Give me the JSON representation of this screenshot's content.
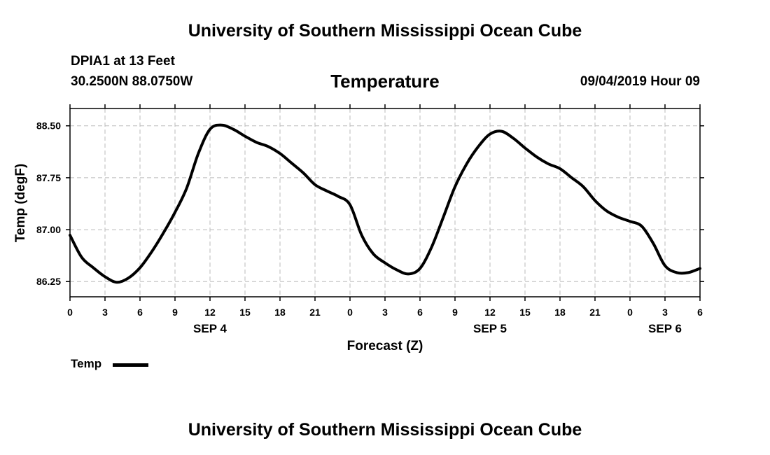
{
  "header": {
    "title": "University of Southern Mississippi Ocean Cube",
    "station": "DPIA1 at 13 Feet",
    "coords": "30.2500N 88.0750W",
    "chart_title": "Temperature",
    "datetime": "09/04/2019 Hour 09"
  },
  "footer": {
    "title": "University of Southern Mississippi Ocean Cube"
  },
  "legend": {
    "label": "Temp"
  },
  "colors": {
    "line": "#000000",
    "grid": "#bbbbbb",
    "background": "#ffffff"
  },
  "chart_data": {
    "type": "line",
    "title": "Temperature",
    "xlabel": "Forecast (Z)",
    "ylabel": "Temp (degF)",
    "x_ticks": [
      "0",
      "3",
      "6",
      "9",
      "12",
      "15",
      "18",
      "21",
      "0",
      "3",
      "6",
      "9",
      "12",
      "15",
      "18",
      "21",
      "0",
      "3",
      "6"
    ],
    "date_labels": [
      {
        "label": "SEP 4",
        "hour": 12
      },
      {
        "label": "SEP 5",
        "hour": 36
      },
      {
        "label": "SEP 6",
        "hour": 51
      }
    ],
    "xlim": [
      0,
      54
    ],
    "ylim": [
      86.03,
      88.75
    ],
    "y_ticks": [
      86.25,
      87.0,
      87.75,
      88.5
    ],
    "y_tick_labels": [
      "86.25",
      "87.00",
      "87.75",
      "88.50"
    ],
    "grid": true,
    "legend_position": "bottom-left",
    "series": [
      {
        "name": "Temp",
        "x": [
          0,
          1,
          2,
          3,
          4,
          5,
          6,
          7,
          8,
          9,
          10,
          11,
          12,
          13,
          14,
          15,
          16,
          17,
          18,
          19,
          20,
          21,
          22,
          23,
          24,
          25,
          26,
          27,
          28,
          29,
          30,
          31,
          32,
          33,
          34,
          35,
          36,
          37,
          38,
          39,
          40,
          41,
          42,
          43,
          44,
          45,
          46,
          47,
          48,
          49,
          50,
          51,
          52,
          53,
          54
        ],
        "y": [
          86.92,
          86.6,
          86.45,
          86.32,
          86.24,
          86.3,
          86.45,
          86.68,
          86.95,
          87.25,
          87.6,
          88.1,
          88.45,
          88.51,
          88.45,
          88.35,
          88.26,
          88.2,
          88.1,
          87.96,
          87.82,
          87.65,
          87.56,
          87.48,
          87.36,
          86.92,
          86.65,
          86.52,
          86.42,
          86.36,
          86.44,
          86.75,
          87.18,
          87.62,
          87.95,
          88.2,
          88.38,
          88.42,
          88.32,
          88.18,
          88.05,
          87.95,
          87.88,
          87.75,
          87.62,
          87.42,
          87.27,
          87.18,
          87.12,
          87.05,
          86.8,
          86.48,
          86.38,
          86.38,
          86.44
        ]
      }
    ]
  }
}
